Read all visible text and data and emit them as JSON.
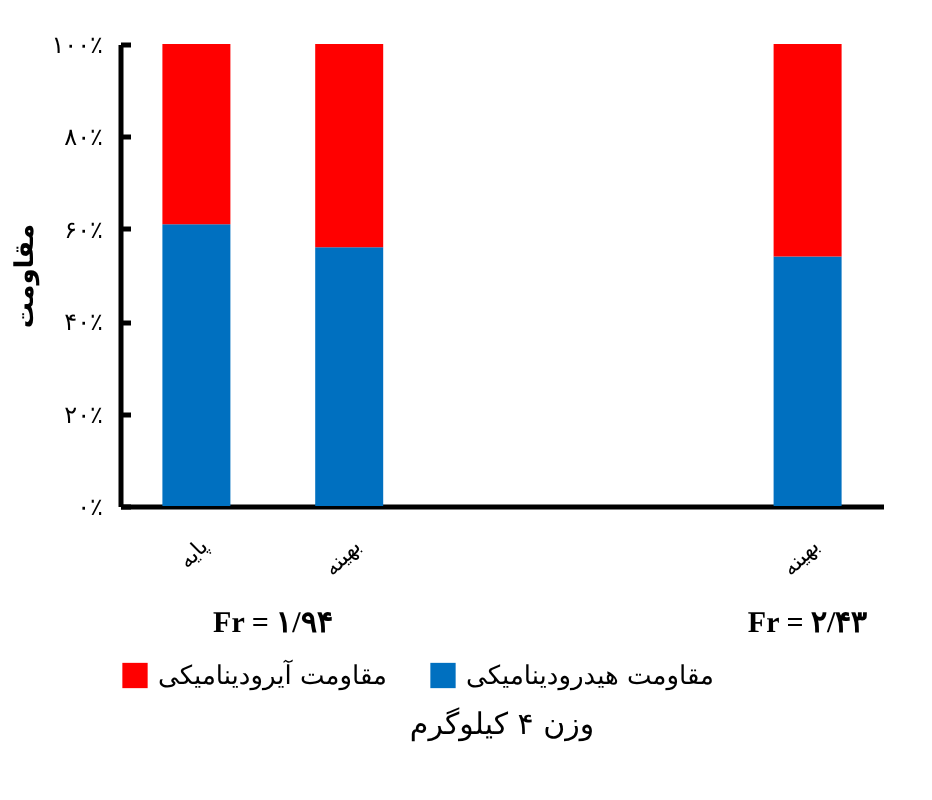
{
  "chart_data": {
    "type": "bar",
    "stacked": true,
    "title": "وزن ۴ کیلوگرم",
    "ylabel": "مقاومت",
    "categories": [
      "پایه",
      "بهینه",
      null,
      null,
      "بهینه"
    ],
    "series": [
      {
        "name": "مقاومت هیدرودینامیکی",
        "color": "#0070c0",
        "values": [
          61,
          56,
          null,
          null,
          54
        ]
      },
      {
        "name": "مقاومت آیرودینامیکی",
        "color": "#ff0000",
        "values": [
          39,
          44,
          null,
          null,
          46
        ]
      }
    ],
    "ylim": [
      0,
      100
    ],
    "yticks": [
      {
        "value": 0,
        "label": "۰٪"
      },
      {
        "value": 20,
        "label": "۲۰٪"
      },
      {
        "value": 40,
        "label": "۴۰٪"
      },
      {
        "value": 60,
        "label": "۶۰٪"
      },
      {
        "value": 80,
        "label": "۸۰٪"
      },
      {
        "value": 100,
        "label": "۱۰۰٪"
      }
    ],
    "annotations": [
      "Fr = ۱/۹۴",
      "Fr = ۲/۴۳"
    ],
    "legend": "bottom",
    "grid": false
  }
}
